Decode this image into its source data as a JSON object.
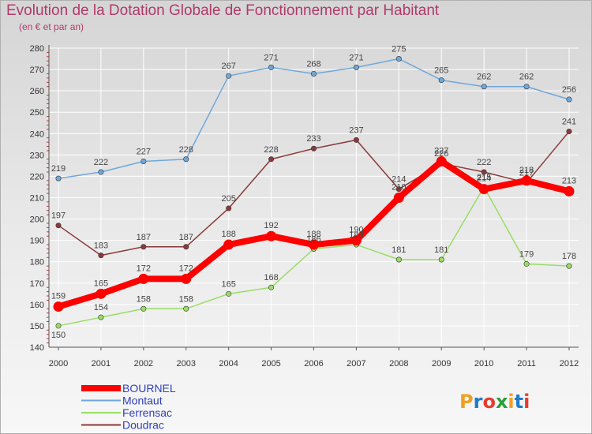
{
  "header": {
    "title": "Evolution de la Dotation Globale de Fonctionnement par Habitant",
    "subtitle": "(en € et par an)"
  },
  "logo": {
    "text": "Proxiti"
  },
  "colors": {
    "BOURNEL": "#ff0000",
    "Montaut": "#6fa8dc",
    "Ferrensac": "#99dd66",
    "Doudrac": "#8b3a3a"
  },
  "chart_data": {
    "type": "line",
    "title": "Evolution de la Dotation Globale de Fonctionnement par Habitant",
    "subtitle": "(en € et par an)",
    "xlabel": "",
    "ylabel": "",
    "x": [
      "2000",
      "2001",
      "2002",
      "2003",
      "2004",
      "2005",
      "2006",
      "2007",
      "2008",
      "2009",
      "2010",
      "2011",
      "2012"
    ],
    "ylim": [
      140,
      280
    ],
    "yticks": [
      140,
      150,
      160,
      170,
      180,
      190,
      200,
      210,
      220,
      230,
      240,
      250,
      260,
      270,
      280
    ],
    "grid": true,
    "legend_position": "bottom-left",
    "series": [
      {
        "name": "BOURNEL",
        "values": [
          159,
          165,
          172,
          172,
          188,
          192,
          188,
          190,
          210,
          227,
          214,
          218,
          213
        ]
      },
      {
        "name": "Montaut",
        "values": [
          219,
          222,
          227,
          228,
          267,
          271,
          268,
          271,
          275,
          265,
          262,
          262,
          256
        ]
      },
      {
        "name": "Ferrensac",
        "values": [
          150,
          154,
          158,
          158,
          165,
          168,
          186,
          188,
          181,
          181,
          215,
          179,
          178
        ]
      },
      {
        "name": "Doudrac",
        "values": [
          197,
          183,
          187,
          187,
          205,
          228,
          233,
          237,
          214,
          226,
          222,
          217,
          241
        ]
      }
    ]
  }
}
